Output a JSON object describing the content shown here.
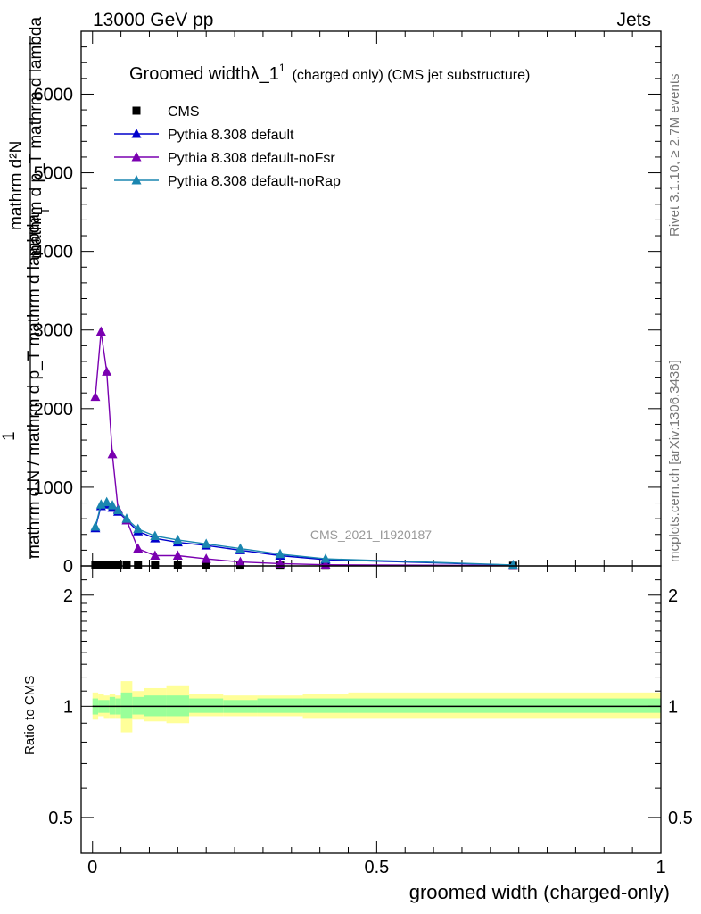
{
  "header": {
    "energy_label": "13000 GeV pp",
    "category_label": "Jets"
  },
  "side_labels": {
    "rivet": "Rivet 3.1.10, ≥ 2.7M events",
    "mcplots": "mcplots.cern.ch [arXiv:1306.3436]"
  },
  "watermark": "CMS_2021_I1920187",
  "title": {
    "main": "Groomed width",
    "symbol": "λ_1",
    "superscript": "1",
    "suffix": "(charged only) (CMS jet substructure)"
  },
  "ylabel_top": {
    "numerator": "mathrm d²N",
    "numerator_sup": "2",
    "sub": "mathrm d p_T mathrm d lambda",
    "T": "T",
    "one": "1",
    "denominator": "mathrm d N / mathrm d p_T mathrm d lambda"
  },
  "ylabel_bottom": "Ratio to CMS",
  "xlabel": "groomed width (charged-only)",
  "colors": {
    "cms": "#000000",
    "default": "#0000cc",
    "noFsr": "#7a00b0",
    "noRap": "#1a86b0",
    "band_yellow": "#ffff99",
    "band_green": "#99ff99"
  },
  "chart_data": [
    {
      "type": "line",
      "panel": "main",
      "xlim": [
        -0.02,
        1.0
      ],
      "ylim": [
        0,
        6800
      ],
      "ytick_values": [
        0,
        1000,
        2000,
        3000,
        4000,
        5000,
        6000
      ],
      "ytick_labels": [
        "0",
        "1000",
        "2000",
        "3000",
        "4000",
        "5000",
        "6000"
      ],
      "legend_placement": "top-left",
      "series": [
        {
          "name": "CMS",
          "key": "cms",
          "marker": "square",
          "x": [
            0.005,
            0.015,
            0.025,
            0.035,
            0.045,
            0.06,
            0.08,
            0.11,
            0.15,
            0.2,
            0.26,
            0.33,
            0.41,
            0.74
          ],
          "y": [
            8,
            9,
            10,
            11,
            11,
            10,
            9,
            8,
            7,
            6,
            5,
            4,
            3,
            2
          ]
        },
        {
          "name": "Pythia 8.308 default",
          "key": "default",
          "marker": "triangle",
          "x": [
            0.005,
            0.015,
            0.025,
            0.035,
            0.045,
            0.06,
            0.08,
            0.11,
            0.15,
            0.2,
            0.26,
            0.33,
            0.41,
            0.74
          ],
          "y": [
            480,
            760,
            780,
            740,
            690,
            580,
            440,
            350,
            300,
            260,
            200,
            130,
            80,
            10
          ]
        },
        {
          "name": "Pythia 8.308 default-noFsr",
          "key": "noFsr",
          "marker": "triangle",
          "x": [
            0.005,
            0.015,
            0.025,
            0.035,
            0.045,
            0.06,
            0.08,
            0.11,
            0.15,
            0.2,
            0.26,
            0.33,
            0.41,
            0.74
          ],
          "y": [
            2150,
            2980,
            2470,
            1420,
            720,
            580,
            220,
            130,
            130,
            90,
            50,
            30,
            15,
            3
          ]
        },
        {
          "name": "Pythia 8.308 default-noRap",
          "key": "noRap",
          "marker": "triangle",
          "x": [
            0.005,
            0.015,
            0.025,
            0.035,
            0.045,
            0.06,
            0.08,
            0.11,
            0.15,
            0.2,
            0.26,
            0.33,
            0.41,
            0.74
          ],
          "y": [
            500,
            780,
            810,
            770,
            710,
            600,
            470,
            380,
            330,
            280,
            220,
            150,
            90,
            12
          ]
        }
      ]
    },
    {
      "type": "area",
      "panel": "ratio",
      "xlim": [
        -0.02,
        1.0
      ],
      "ylim": [
        0.4,
        2.4
      ],
      "log_scale_y": true,
      "ytick_values": [
        0.5,
        1,
        2
      ],
      "ytick_labels": [
        "0.5",
        "1",
        "2"
      ],
      "xtick_values": [
        0,
        0.5,
        1
      ],
      "xtick_labels": [
        "0",
        "0.5",
        "1"
      ],
      "reference_line": 1,
      "bands": [
        {
          "x0": 0.0,
          "x1": 0.01,
          "g_lo": 0.95,
          "g_hi": 1.05,
          "y_lo": 0.92,
          "y_hi": 1.09
        },
        {
          "x0": 0.01,
          "x1": 0.02,
          "g_lo": 0.96,
          "g_hi": 1.04,
          "y_lo": 0.94,
          "y_hi": 1.08
        },
        {
          "x0": 0.02,
          "x1": 0.03,
          "g_lo": 0.96,
          "g_hi": 1.04,
          "y_lo": 0.93,
          "y_hi": 1.07
        },
        {
          "x0": 0.03,
          "x1": 0.04,
          "g_lo": 0.95,
          "g_hi": 1.06,
          "y_lo": 0.93,
          "y_hi": 1.08
        },
        {
          "x0": 0.04,
          "x1": 0.05,
          "g_lo": 0.95,
          "g_hi": 1.05,
          "y_lo": 0.93,
          "y_hi": 1.07
        },
        {
          "x0": 0.05,
          "x1": 0.07,
          "g_lo": 0.93,
          "g_hi": 1.09,
          "y_lo": 0.85,
          "y_hi": 1.17
        },
        {
          "x0": 0.07,
          "x1": 0.09,
          "g_lo": 0.95,
          "g_hi": 1.06,
          "y_lo": 0.92,
          "y_hi": 1.1
        },
        {
          "x0": 0.09,
          "x1": 0.13,
          "g_lo": 0.94,
          "g_hi": 1.07,
          "y_lo": 0.91,
          "y_hi": 1.12
        },
        {
          "x0": 0.13,
          "x1": 0.17,
          "g_lo": 0.94,
          "g_hi": 1.07,
          "y_lo": 0.9,
          "y_hi": 1.14
        },
        {
          "x0": 0.17,
          "x1": 0.23,
          "g_lo": 0.96,
          "g_hi": 1.05,
          "y_lo": 0.94,
          "y_hi": 1.08
        },
        {
          "x0": 0.23,
          "x1": 0.29,
          "g_lo": 0.96,
          "g_hi": 1.04,
          "y_lo": 0.94,
          "y_hi": 1.07
        },
        {
          "x0": 0.29,
          "x1": 0.37,
          "g_lo": 0.96,
          "g_hi": 1.05,
          "y_lo": 0.94,
          "y_hi": 1.07
        },
        {
          "x0": 0.37,
          "x1": 0.45,
          "g_lo": 0.96,
          "g_hi": 1.05,
          "y_lo": 0.93,
          "y_hi": 1.08
        },
        {
          "x0": 0.45,
          "x1": 1.0,
          "g_lo": 0.96,
          "g_hi": 1.05,
          "y_lo": 0.93,
          "y_hi": 1.09
        }
      ]
    }
  ]
}
